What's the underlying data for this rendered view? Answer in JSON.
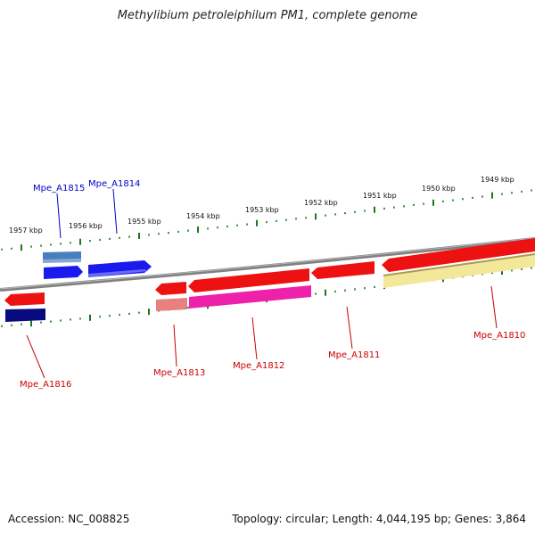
{
  "title": "Methylibium petroleiphilum PM1, complete genome",
  "footer": {
    "accession": "Accession: NC_008825",
    "summary": "Topology: circular; Length: 4,044,195 bp; Genes: 3,864"
  },
  "colors": {
    "forward_label": "#0000cc",
    "reverse_label": "#cc0000",
    "backbone": "#808080",
    "ticks": "#1a7a1a"
  },
  "kbp_ticks": [
    "1957 kbp",
    "1956 kbp",
    "1955 kbp",
    "1954 kbp",
    "1953 kbp",
    "1952 kbp",
    "1951 kbp",
    "1950 kbp",
    "1949 kbp"
  ],
  "genes": [
    {
      "name": "Mpe_A1815",
      "strand": "forward"
    },
    {
      "name": "Mpe_A1814",
      "strand": "forward"
    },
    {
      "name": "Mpe_A1816",
      "strand": "reverse"
    },
    {
      "name": "Mpe_A1813",
      "strand": "reverse"
    },
    {
      "name": "Mpe_A1812",
      "strand": "reverse"
    },
    {
      "name": "Mpe_A1811",
      "strand": "reverse"
    },
    {
      "name": "Mpe_A1810",
      "strand": "reverse"
    }
  ]
}
